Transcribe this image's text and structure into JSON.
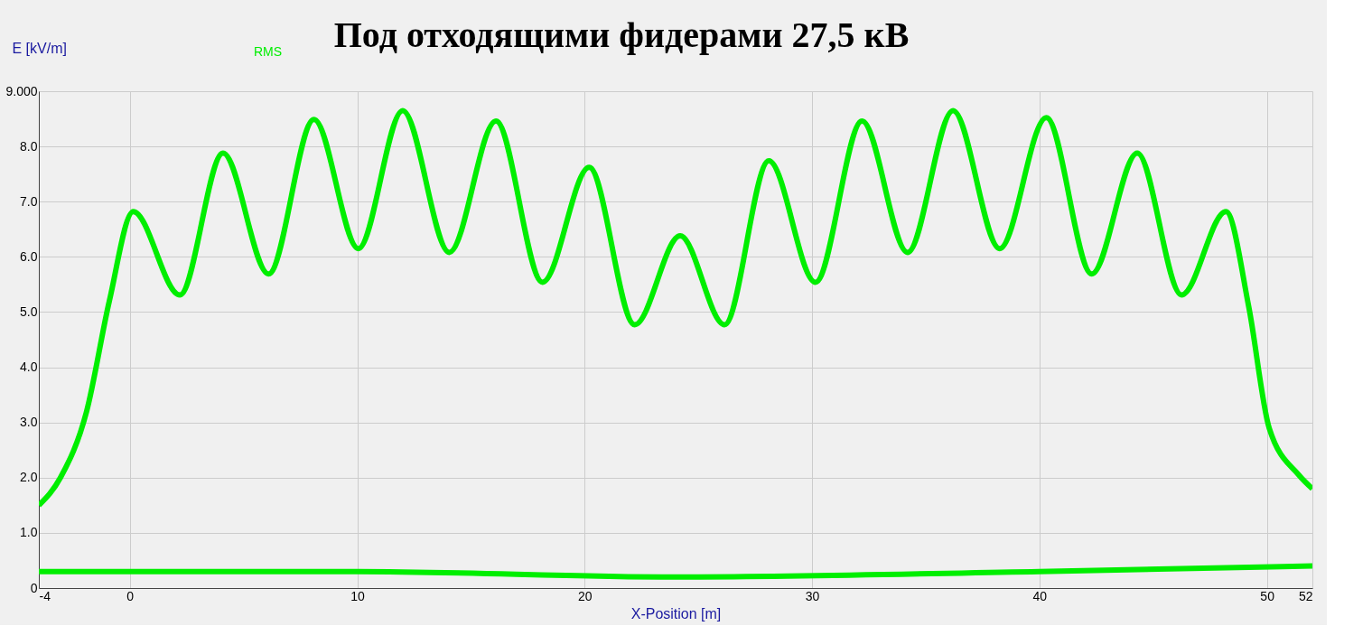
{
  "chart_data": {
    "type": "line",
    "title": "Под отходящими фидерами 27,5 кВ",
    "xlabel": "X-Position [m]",
    "ylabel": "E [kV/m]",
    "xlim": [
      -4,
      52
    ],
    "ylim": [
      0,
      9
    ],
    "xticks": [
      -4,
      0,
      10,
      20,
      30,
      40,
      50,
      52
    ],
    "yticks": [
      0,
      {
        "value": 1,
        "label": "1.0"
      },
      {
        "value": 2,
        "label": "2.0"
      },
      {
        "value": 3,
        "label": "3.0"
      },
      {
        "value": 4,
        "label": "4.0"
      },
      {
        "value": 5,
        "label": "5.0"
      },
      {
        "value": 6,
        "label": "6.0"
      },
      {
        "value": 7,
        "label": "7.0"
      },
      {
        "value": 8,
        "label": "8.0"
      },
      {
        "value": 9,
        "label": "9.000"
      }
    ],
    "grid": true,
    "legend": "top left",
    "marker": "none",
    "line_style": "solid",
    "series": [
      {
        "name": "RMS",
        "color": "#00ee00",
        "x": [
          -4,
          -3.05,
          -1.9,
          -0.9,
          0.15,
          2.2,
          4.1,
          6.1,
          8.1,
          10.05,
          12.0,
          14.05,
          16.1,
          18.15,
          20.2,
          22.2,
          24.2,
          26.15,
          28.1,
          30.15,
          32.2,
          34.2,
          36.2,
          38.25,
          40.3,
          42.3,
          44.3,
          46.25,
          48.2,
          49.2,
          50.1,
          51.4,
          52
        ],
        "values": [
          1.5,
          2.0,
          3.2,
          5.2,
          6.82,
          5.31,
          7.88,
          5.69,
          8.49,
          6.15,
          8.65,
          6.08,
          8.46,
          5.54,
          7.62,
          4.77,
          6.38,
          4.77,
          7.74,
          5.54,
          8.46,
          6.08,
          8.65,
          6.15,
          8.52,
          5.69,
          7.88,
          5.31,
          6.82,
          5.1,
          2.9,
          2.05,
          1.8
        ]
      },
      {
        "color": "#00ee00",
        "x": [
          -4,
          10,
          24,
          40,
          52
        ],
        "values": [
          0.3,
          0.3,
          0.2,
          0.3,
          0.4
        ]
      }
    ]
  }
}
